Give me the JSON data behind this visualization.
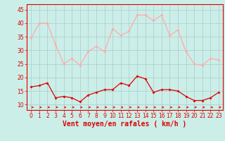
{
  "x": [
    0,
    1,
    2,
    3,
    4,
    5,
    6,
    7,
    8,
    9,
    10,
    11,
    12,
    13,
    14,
    15,
    16,
    17,
    18,
    19,
    20,
    21,
    22,
    23
  ],
  "wind_avg": [
    16.5,
    17,
    18,
    12.5,
    13,
    12.5,
    11,
    13.5,
    14.5,
    15.5,
    15.5,
    18,
    17,
    20.5,
    19.5,
    14.5,
    15.5,
    15.5,
    15,
    13,
    11.5,
    11.5,
    12.5,
    14.5
  ],
  "wind_gust": [
    34.5,
    40,
    40,
    32,
    25,
    27,
    24.5,
    29.5,
    31.5,
    29.5,
    38,
    35.5,
    37,
    43,
    43,
    41,
    43,
    35.5,
    37.5,
    29.5,
    25,
    24.5,
    27,
    26.5
  ],
  "avg_color": "#dd0000",
  "gust_color": "#ffaaaa",
  "bg_color": "#cceee8",
  "grid_color": "#aacccc",
  "xlabel": "Vent moyen/en rafales ( km/h )",
  "yticks": [
    10,
    15,
    20,
    25,
    30,
    35,
    40,
    45
  ],
  "ylim": [
    8,
    47
  ],
  "xlim": [
    -0.5,
    23.5
  ],
  "tick_fontsize": 5.5,
  "label_fontsize": 7
}
